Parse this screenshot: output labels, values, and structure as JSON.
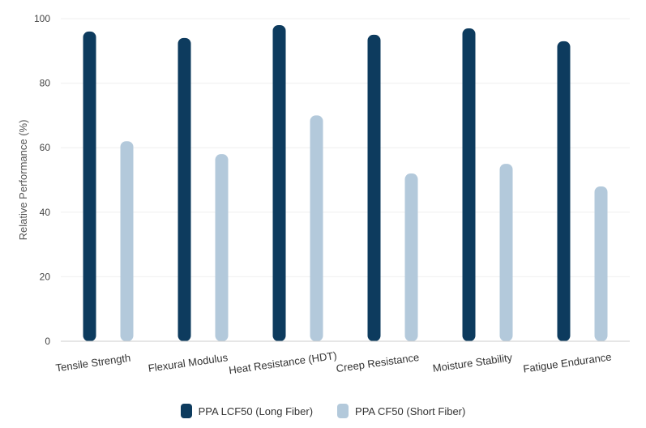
{
  "chart_data": {
    "type": "bar",
    "ylabel": "Relative Performance (%)",
    "ylim": [
      0,
      100
    ],
    "yticks": [
      0,
      20,
      40,
      60,
      80,
      100
    ],
    "grid": true,
    "legend_placement": "bottom",
    "categories": [
      "Tensile Strength",
      "Flexural Modulus",
      "Heat Resistance (HDT)",
      "Creep Resistance",
      "Moisture Stability",
      "Fatigue Endurance"
    ],
    "series": [
      {
        "name": "PPA LCF50 (Long Fiber)",
        "color": "#0d3b5e",
        "values": [
          96,
          94,
          98,
          95,
          97,
          93
        ]
      },
      {
        "name": "PPA CF50 (Short Fiber)",
        "color": "#b3c9db",
        "values": [
          62,
          58,
          70,
          52,
          55,
          48
        ]
      }
    ]
  }
}
